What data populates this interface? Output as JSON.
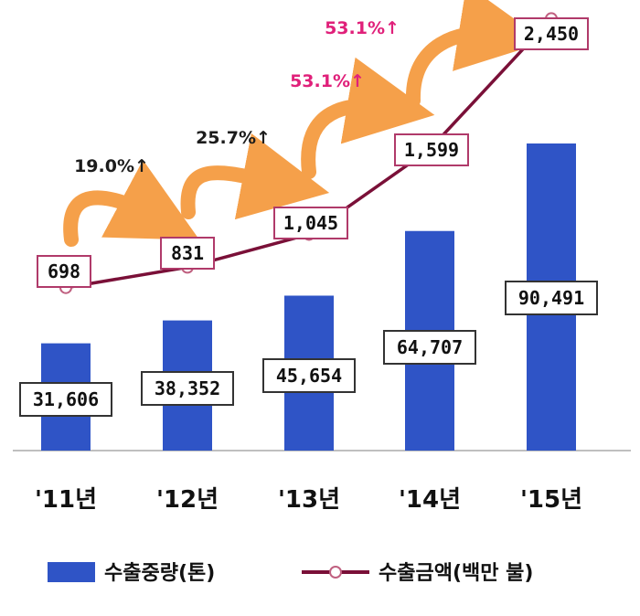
{
  "chart_data": {
    "type": "bar",
    "categories": [
      "'11년",
      "'12년",
      "'13년",
      "'14년",
      "'15년"
    ],
    "series": [
      {
        "name": "수출중량(톤)",
        "type": "bar",
        "values": [
          31606,
          38352,
          45654,
          64707,
          90491
        ],
        "labels": [
          "31,606",
          "38,352",
          "45,654",
          "64,707",
          "90,491"
        ],
        "color": "#2f54c6"
      },
      {
        "name": "수출금액(백만 불)",
        "type": "line",
        "values": [
          698,
          831,
          1045,
          1599,
          2450
        ],
        "labels": [
          "698",
          "831",
          "1,045",
          "1,599",
          "2,450"
        ],
        "color": "#7a1038"
      }
    ],
    "growth_annotations": [
      {
        "from": 0,
        "to": 1,
        "text": "19.0%↑",
        "color": "#1c1c1c"
      },
      {
        "from": 1,
        "to": 2,
        "text": "25.7%↑",
        "color": "#1c1c1c"
      },
      {
        "from": 2,
        "to": 3,
        "text": "53.1%↑",
        "color": "#e0207a"
      },
      {
        "from": 3,
        "to": 4,
        "text": "53.1%↑",
        "color": "#e0207a"
      }
    ],
    "legend": {
      "position": "bottom"
    },
    "colors": {
      "arrow": "#f5a04a",
      "label_border_bar": "#333333",
      "label_border_line": "#b03a6a"
    },
    "grid": false
  }
}
